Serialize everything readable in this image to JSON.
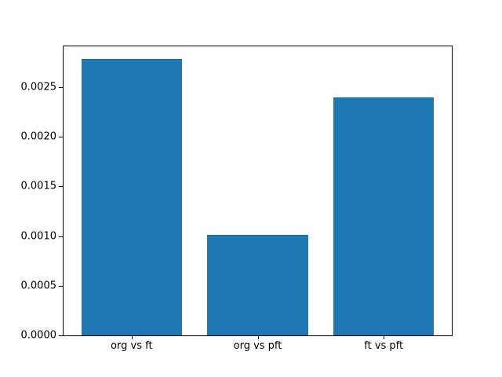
{
  "figure": {
    "background": "#ffffff",
    "bar_color": "#1f77b4",
    "spine_color": "#000000",
    "text_color": "#000000"
  },
  "chart_data": {
    "type": "bar",
    "title": "",
    "xlabel": "",
    "ylabel": "",
    "categories": [
      "org vs ft",
      "org vs pft",
      "ft vs pft"
    ],
    "values": [
      0.00278,
      0.00101,
      0.0024
    ],
    "ylim": [
      0,
      0.00291
    ],
    "xlim": [
      -0.54,
      2.54
    ],
    "bar_width": 0.8,
    "yticks": [
      {
        "value": 0.0,
        "label": "0.0000"
      },
      {
        "value": 0.0005,
        "label": "0.0005"
      },
      {
        "value": 0.001,
        "label": "0.0010"
      },
      {
        "value": 0.0015,
        "label": "0.0015"
      },
      {
        "value": 0.002,
        "label": "0.0020"
      },
      {
        "value": 0.0025,
        "label": "0.0025"
      }
    ],
    "grid": false,
    "legend": null
  }
}
